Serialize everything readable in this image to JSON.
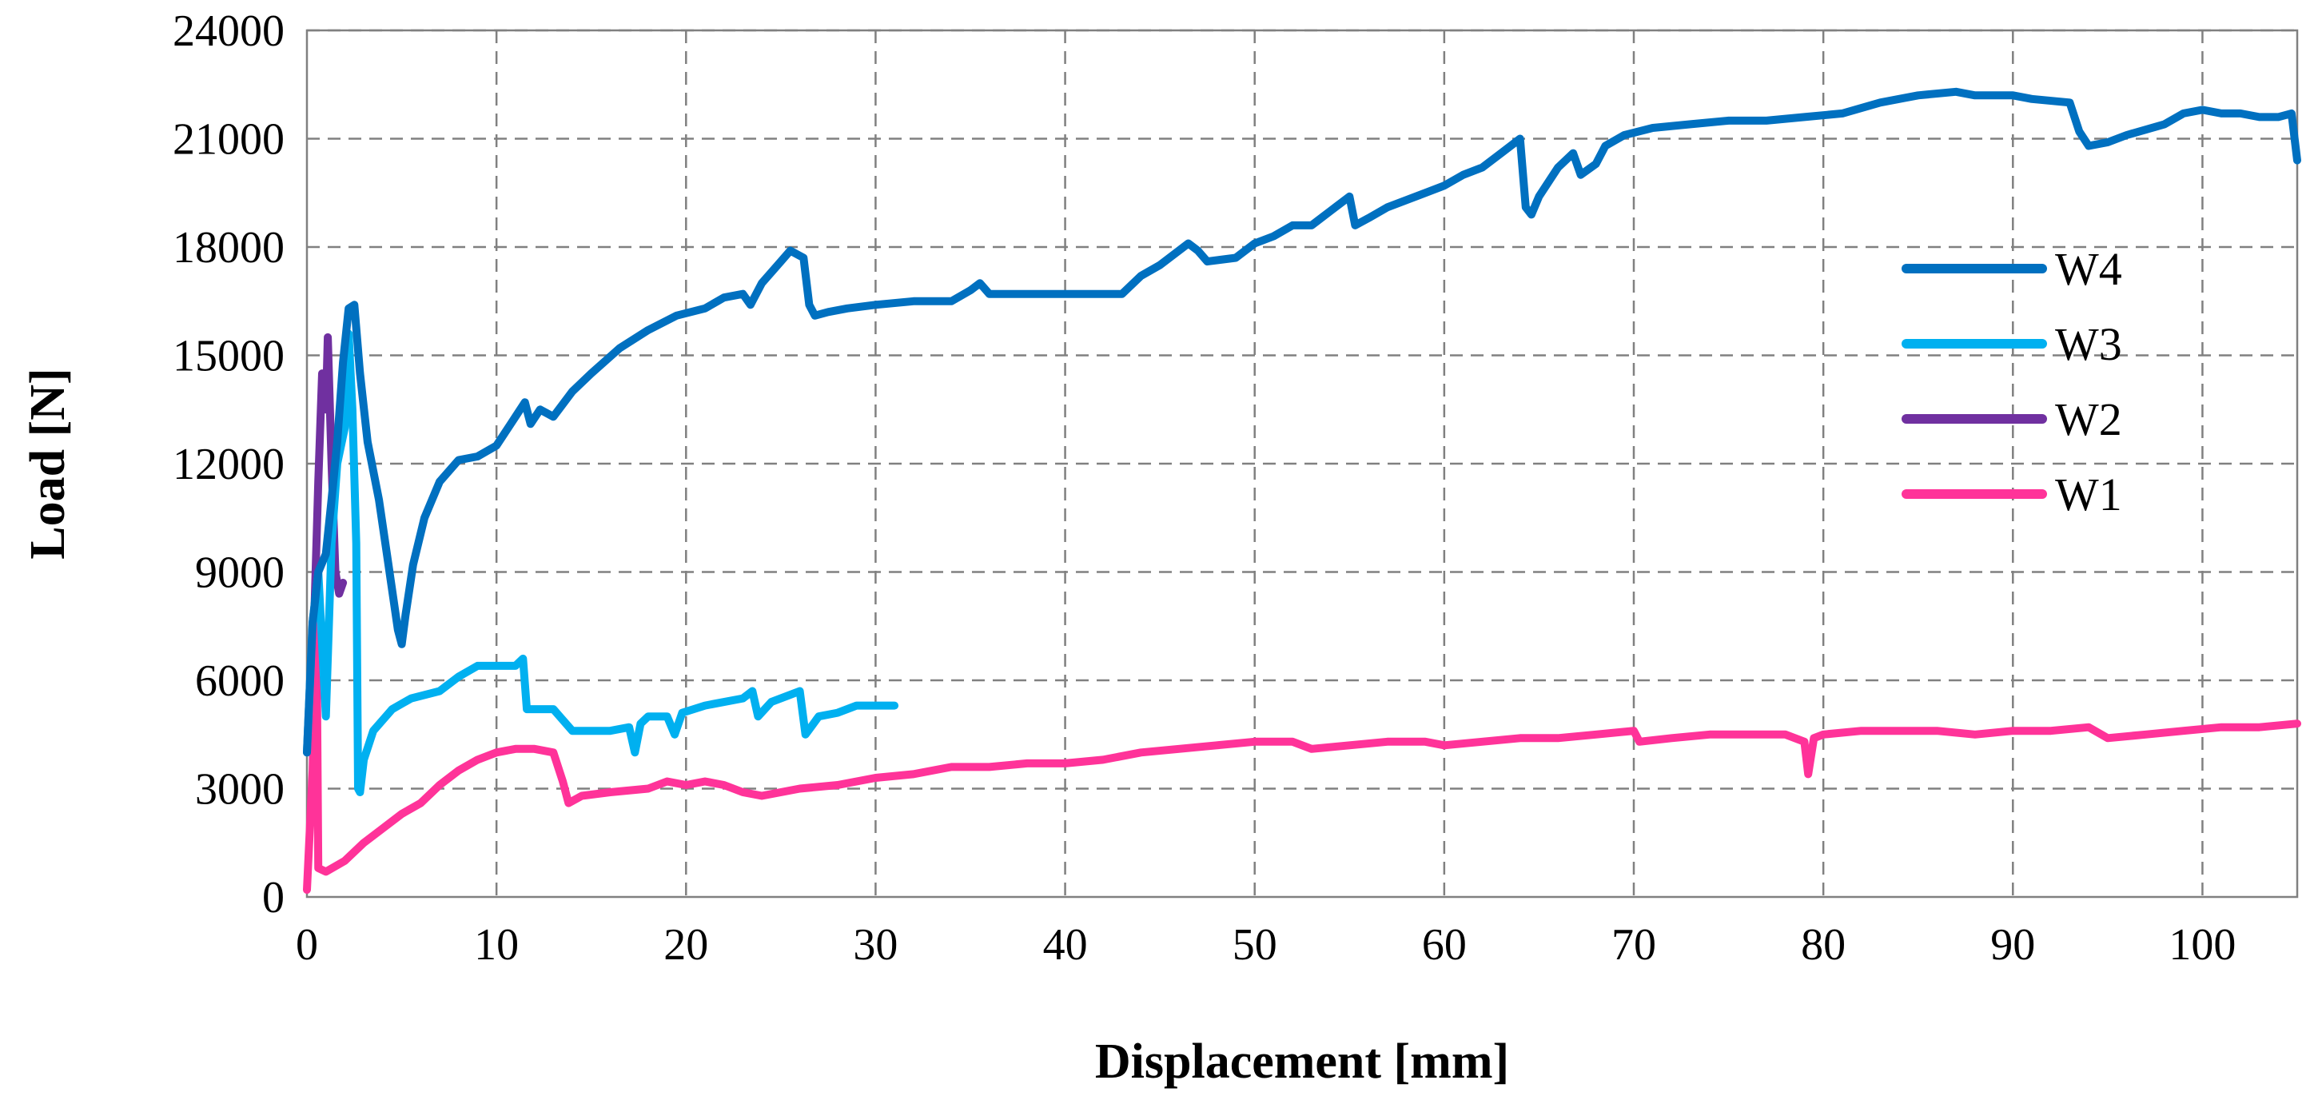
{
  "chart_data": {
    "type": "line",
    "title": "",
    "xlabel": "Displacement [mm]",
    "ylabel": "Load [N]",
    "xlim": [
      0,
      105
    ],
    "ylim": [
      0,
      24000
    ],
    "x_ticks": [
      0,
      10,
      20,
      30,
      40,
      50,
      60,
      70,
      80,
      90,
      100
    ],
    "y_ticks": [
      0,
      3000,
      6000,
      9000,
      12000,
      15000,
      18000,
      21000,
      24000
    ],
    "grid": true,
    "legend_position": "right",
    "series": [
      {
        "name": "W4",
        "color": "#0070C0",
        "points": [
          [
            0,
            4000
          ],
          [
            0.3,
            7600
          ],
          [
            0.6,
            9000
          ],
          [
            1.0,
            9500
          ],
          [
            1.3,
            11000
          ],
          [
            1.6,
            12600
          ],
          [
            1.9,
            14800
          ],
          [
            2.2,
            16300
          ],
          [
            2.5,
            16400
          ],
          [
            2.8,
            14500
          ],
          [
            3.2,
            12600
          ],
          [
            3.8,
            11000
          ],
          [
            4.3,
            9200
          ],
          [
            4.8,
            7400
          ],
          [
            5.0,
            7000
          ],
          [
            5.2,
            7800
          ],
          [
            5.6,
            9200
          ],
          [
            6.2,
            10500
          ],
          [
            7.0,
            11500
          ],
          [
            8.0,
            12100
          ],
          [
            9.0,
            12200
          ],
          [
            10.0,
            12500
          ],
          [
            11.0,
            13300
          ],
          [
            11.5,
            13700
          ],
          [
            11.8,
            13100
          ],
          [
            12.3,
            13500
          ],
          [
            13.0,
            13300
          ],
          [
            14.0,
            14000
          ],
          [
            15.0,
            14500
          ],
          [
            16.5,
            15200
          ],
          [
            18.0,
            15700
          ],
          [
            19.5,
            16100
          ],
          [
            21.0,
            16300
          ],
          [
            22.0,
            16600
          ],
          [
            23.0,
            16700
          ],
          [
            23.4,
            16400
          ],
          [
            24.0,
            17000
          ],
          [
            25.0,
            17600
          ],
          [
            25.5,
            17900
          ],
          [
            26.2,
            17700
          ],
          [
            26.5,
            16400
          ],
          [
            26.8,
            16100
          ],
          [
            27.5,
            16200
          ],
          [
            28.5,
            16300
          ],
          [
            30.0,
            16400
          ],
          [
            32.0,
            16500
          ],
          [
            34.0,
            16500
          ],
          [
            35.0,
            16800
          ],
          [
            35.5,
            17000
          ],
          [
            36.0,
            16700
          ],
          [
            38.0,
            16700
          ],
          [
            40.0,
            16700
          ],
          [
            43.0,
            16700
          ],
          [
            44.0,
            17200
          ],
          [
            45.0,
            17500
          ],
          [
            46.0,
            17900
          ],
          [
            46.5,
            18100
          ],
          [
            47.0,
            17900
          ],
          [
            47.5,
            17600
          ],
          [
            49.0,
            17700
          ],
          [
            50.0,
            18100
          ],
          [
            51.0,
            18300
          ],
          [
            52.0,
            18600
          ],
          [
            53.0,
            18600
          ],
          [
            54.0,
            19000
          ],
          [
            55.0,
            19400
          ],
          [
            55.3,
            18600
          ],
          [
            56.0,
            18800
          ],
          [
            57.0,
            19100
          ],
          [
            58.0,
            19300
          ],
          [
            59.0,
            19500
          ],
          [
            60.0,
            19700
          ],
          [
            61.0,
            20000
          ],
          [
            62.0,
            20200
          ],
          [
            63.0,
            20600
          ],
          [
            64.0,
            21000
          ],
          [
            64.3,
            19100
          ],
          [
            64.6,
            18900
          ],
          [
            65.0,
            19400
          ],
          [
            66.0,
            20200
          ],
          [
            66.8,
            20600
          ],
          [
            67.2,
            20000
          ],
          [
            68.0,
            20300
          ],
          [
            68.5,
            20800
          ],
          [
            69.5,
            21100
          ],
          [
            71.0,
            21300
          ],
          [
            73.0,
            21400
          ],
          [
            75.0,
            21500
          ],
          [
            77.0,
            21500
          ],
          [
            79.0,
            21600
          ],
          [
            81.0,
            21700
          ],
          [
            83.0,
            22000
          ],
          [
            85.0,
            22200
          ],
          [
            87.0,
            22300
          ],
          [
            88.0,
            22200
          ],
          [
            90.0,
            22200
          ],
          [
            91.0,
            22100
          ],
          [
            93.0,
            22000
          ],
          [
            93.5,
            21200
          ],
          [
            94.0,
            20800
          ],
          [
            95.0,
            20900
          ],
          [
            96.0,
            21100
          ],
          [
            98.0,
            21400
          ],
          [
            99.0,
            21700
          ],
          [
            100.0,
            21800
          ],
          [
            101.0,
            21700
          ],
          [
            102.0,
            21700
          ],
          [
            103.0,
            21600
          ],
          [
            104.0,
            21600
          ],
          [
            104.7,
            21700
          ],
          [
            105.0,
            20400
          ]
        ]
      },
      {
        "name": "W3",
        "color": "#00B0F0",
        "points": [
          [
            0,
            4000
          ],
          [
            0.3,
            7600
          ],
          [
            0.6,
            9000
          ],
          [
            1.0,
            5000
          ],
          [
            1.3,
            9800
          ],
          [
            1.6,
            12000
          ],
          [
            2.0,
            13000
          ],
          [
            2.2,
            15600
          ],
          [
            2.4,
            13500
          ],
          [
            2.6,
            9800
          ],
          [
            2.7,
            3000
          ],
          [
            2.8,
            2900
          ],
          [
            3.0,
            3800
          ],
          [
            3.5,
            4600
          ],
          [
            4.5,
            5200
          ],
          [
            5.5,
            5500
          ],
          [
            7.0,
            5700
          ],
          [
            8.0,
            6100
          ],
          [
            9.0,
            6400
          ],
          [
            10.0,
            6400
          ],
          [
            11.0,
            6400
          ],
          [
            11.4,
            6600
          ],
          [
            11.6,
            5200
          ],
          [
            13.0,
            5200
          ],
          [
            14.0,
            4600
          ],
          [
            16.0,
            4600
          ],
          [
            17.0,
            4700
          ],
          [
            17.3,
            4000
          ],
          [
            17.6,
            4800
          ],
          [
            18.0,
            5000
          ],
          [
            19.0,
            5000
          ],
          [
            19.4,
            4500
          ],
          [
            19.8,
            5100
          ],
          [
            21.0,
            5300
          ],
          [
            23.0,
            5500
          ],
          [
            23.5,
            5700
          ],
          [
            23.8,
            5000
          ],
          [
            24.5,
            5400
          ],
          [
            25.5,
            5600
          ],
          [
            26.0,
            5700
          ],
          [
            26.3,
            4500
          ],
          [
            27.0,
            5000
          ],
          [
            28.0,
            5100
          ],
          [
            29.0,
            5300
          ],
          [
            30.0,
            5300
          ],
          [
            31.0,
            5300
          ]
        ]
      },
      {
        "name": "W2",
        "color": "#7030A0",
        "points": [
          [
            0.4,
            8000
          ],
          [
            0.6,
            11500
          ],
          [
            0.8,
            14500
          ],
          [
            1.0,
            13500
          ],
          [
            1.1,
            15500
          ],
          [
            1.3,
            12000
          ],
          [
            1.5,
            9000
          ],
          [
            1.7,
            8400
          ],
          [
            1.9,
            8700
          ]
        ]
      },
      {
        "name": "W1",
        "color": "#FF3399",
        "points": [
          [
            0,
            200
          ],
          [
            0.3,
            3500
          ],
          [
            0.5,
            7800
          ],
          [
            0.6,
            800
          ],
          [
            1.0,
            700
          ],
          [
            2.0,
            1000
          ],
          [
            3.0,
            1500
          ],
          [
            4.0,
            1900
          ],
          [
            5.0,
            2300
          ],
          [
            6.0,
            2600
          ],
          [
            7.0,
            3100
          ],
          [
            8.0,
            3500
          ],
          [
            9.0,
            3800
          ],
          [
            10.0,
            4000
          ],
          [
            11.0,
            4100
          ],
          [
            12.0,
            4100
          ],
          [
            13.0,
            4000
          ],
          [
            13.5,
            3200
          ],
          [
            13.8,
            2600
          ],
          [
            14.5,
            2800
          ],
          [
            16.0,
            2900
          ],
          [
            18.0,
            3000
          ],
          [
            19.0,
            3200
          ],
          [
            20.0,
            3100
          ],
          [
            21.0,
            3200
          ],
          [
            22.0,
            3100
          ],
          [
            23.0,
            2900
          ],
          [
            24.0,
            2800
          ],
          [
            26.0,
            3000
          ],
          [
            28.0,
            3100
          ],
          [
            30.0,
            3300
          ],
          [
            32.0,
            3400
          ],
          [
            34.0,
            3600
          ],
          [
            36.0,
            3600
          ],
          [
            38.0,
            3700
          ],
          [
            40.0,
            3700
          ],
          [
            42.0,
            3800
          ],
          [
            44.0,
            4000
          ],
          [
            46.0,
            4100
          ],
          [
            48.0,
            4200
          ],
          [
            50.0,
            4300
          ],
          [
            52.0,
            4300
          ],
          [
            53.0,
            4100
          ],
          [
            55.0,
            4200
          ],
          [
            57.0,
            4300
          ],
          [
            59.0,
            4300
          ],
          [
            60.0,
            4200
          ],
          [
            62.0,
            4300
          ],
          [
            64.0,
            4400
          ],
          [
            66.0,
            4400
          ],
          [
            68.0,
            4500
          ],
          [
            70.0,
            4600
          ],
          [
            70.3,
            4300
          ],
          [
            72.0,
            4400
          ],
          [
            74.0,
            4500
          ],
          [
            76.0,
            4500
          ],
          [
            78.0,
            4500
          ],
          [
            79.0,
            4300
          ],
          [
            79.2,
            3400
          ],
          [
            79.5,
            4400
          ],
          [
            80.0,
            4500
          ],
          [
            82.0,
            4600
          ],
          [
            84.0,
            4600
          ],
          [
            86.0,
            4600
          ],
          [
            88.0,
            4500
          ],
          [
            90.0,
            4600
          ],
          [
            92.0,
            4600
          ],
          [
            94.0,
            4700
          ],
          [
            95.0,
            4400
          ],
          [
            97.0,
            4500
          ],
          [
            99.0,
            4600
          ],
          [
            101.0,
            4700
          ],
          [
            103.0,
            4700
          ],
          [
            105.0,
            4800
          ]
        ]
      }
    ]
  }
}
